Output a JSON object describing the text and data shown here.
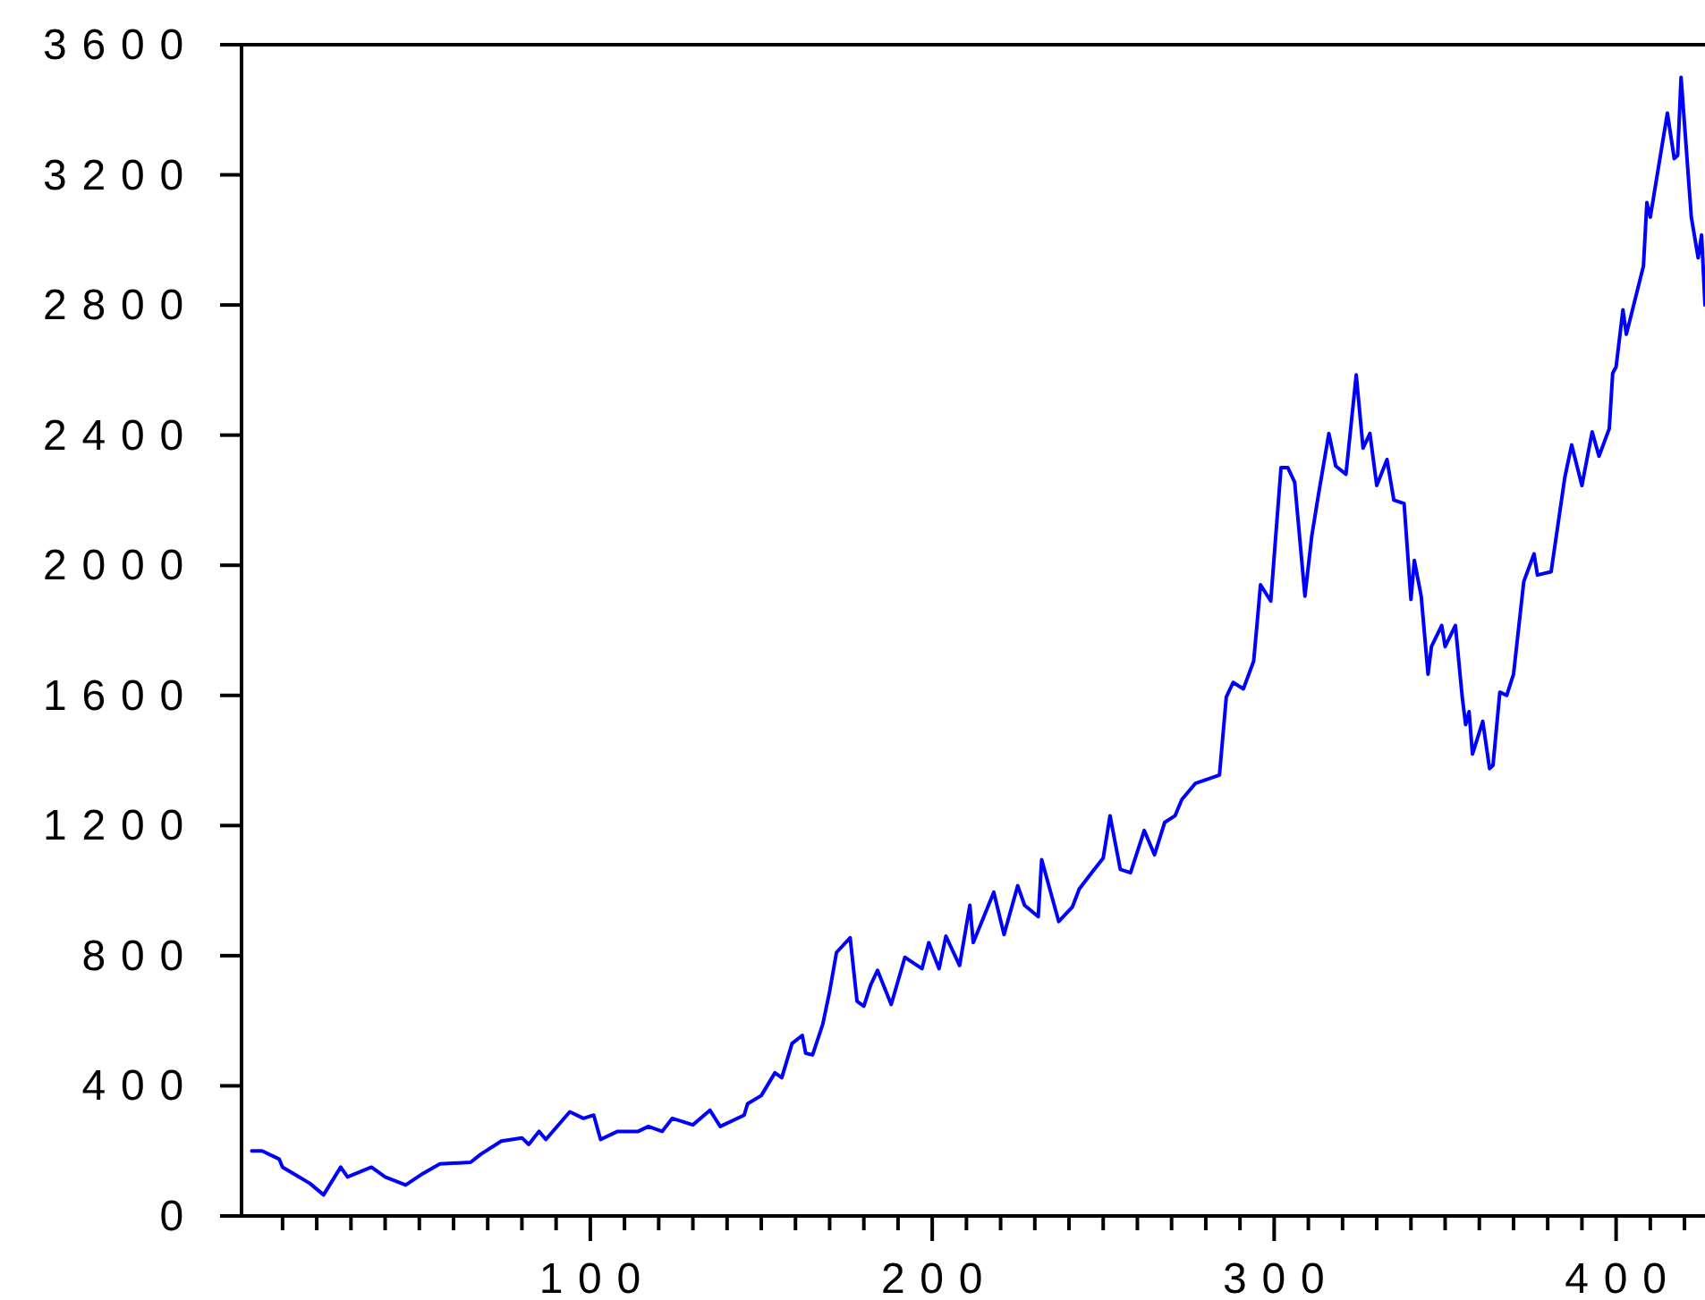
{
  "chart_data": {
    "type": "line",
    "xlim": [
      -2,
      426
    ],
    "ylim": [
      0,
      3600
    ],
    "xticks": [
      {
        "value": 10,
        "label": null
      },
      {
        "value": 20,
        "label": null
      },
      {
        "value": 30,
        "label": null
      },
      {
        "value": 40,
        "label": null
      },
      {
        "value": 50,
        "label": null
      },
      {
        "value": 60,
        "label": null
      },
      {
        "value": 70,
        "label": null
      },
      {
        "value": 80,
        "label": null
      },
      {
        "value": 90,
        "label": null
      },
      100,
      {
        "value": 110,
        "label": null
      },
      {
        "value": 120,
        "label": null
      },
      {
        "value": 130,
        "label": null
      },
      {
        "value": 140,
        "label": null
      },
      {
        "value": 150,
        "label": null
      },
      {
        "value": 160,
        "label": null
      },
      {
        "value": 170,
        "label": null
      },
      {
        "value": 180,
        "label": null
      },
      {
        "value": 190,
        "label": null
      },
      200,
      {
        "value": 210,
        "label": null
      },
      {
        "value": 220,
        "label": null
      },
      {
        "value": 230,
        "label": null
      },
      {
        "value": 240,
        "label": null
      },
      {
        "value": 250,
        "label": null
      },
      {
        "value": 260,
        "label": null
      },
      {
        "value": 270,
        "label": null
      },
      {
        "value": 280,
        "label": null
      },
      {
        "value": 290,
        "label": null
      },
      300,
      {
        "value": 310,
        "label": null
      },
      {
        "value": 320,
        "label": null
      },
      {
        "value": 330,
        "label": null
      },
      {
        "value": 340,
        "label": null
      },
      {
        "value": 350,
        "label": null
      },
      {
        "value": 360,
        "label": null
      },
      {
        "value": 370,
        "label": null
      },
      {
        "value": 380,
        "label": null
      },
      {
        "value": 390,
        "label": null
      },
      400,
      {
        "value": 410,
        "label": null
      },
      {
        "value": 420,
        "label": null
      }
    ],
    "yticks": [
      0,
      400,
      800,
      1200,
      1600,
      2000,
      2400,
      2800,
      3200,
      3600
    ],
    "grid": false,
    "marker": "none",
    "line_style": "solid",
    "series": [
      {
        "color": "#0000ff",
        "x": [
          1,
          4,
          9,
          10,
          14,
          18,
          22,
          27,
          29,
          36,
          40,
          46,
          51,
          56,
          65,
          68,
          74,
          80,
          82,
          85,
          87,
          94,
          98,
          101,
          103,
          108,
          114,
          117,
          121,
          124,
          130,
          135,
          138,
          145,
          146,
          150,
          152,
          154,
          156,
          159,
          162,
          163,
          165,
          168,
          170,
          172,
          176,
          178,
          180,
          182,
          184,
          188,
          192,
          197,
          199,
          202,
          204,
          208,
          211,
          212,
          218,
          221,
          225,
          227,
          231,
          232,
          237,
          241,
          243,
          247,
          250,
          252,
          255,
          258,
          262,
          265,
          268,
          271,
          273,
          277,
          284,
          286,
          288,
          291,
          294,
          295,
          296,
          299,
          302,
          304,
          306,
          309,
          311,
          313,
          316,
          318,
          321,
          324,
          326,
          328,
          330,
          333,
          335,
          338,
          340,
          341,
          343,
          345,
          346,
          349,
          350,
          353,
          355,
          356,
          357,
          358,
          361,
          363,
          364,
          366,
          368,
          370,
          373,
          376,
          377,
          381,
          385,
          387,
          390,
          393,
          395,
          398,
          399,
          400,
          402,
          403,
          408,
          409,
          410,
          415,
          417,
          418,
          419,
          422,
          424,
          425,
          426
        ],
        "values": [
          200,
          200,
          175,
          150,
          125,
          100,
          65,
          150,
          120,
          150,
          120,
          95,
          130,
          160,
          165,
          190,
          230,
          240,
          220,
          260,
          235,
          320,
          300,
          310,
          235,
          260,
          260,
          275,
          260,
          300,
          280,
          325,
          275,
          310,
          345,
          370,
          405,
          440,
          425,
          530,
          555,
          500,
          495,
          590,
          690,
          810,
          855,
          660,
          645,
          710,
          755,
          650,
          795,
          760,
          840,
          760,
          860,
          770,
          955,
          840,
          995,
          865,
          1015,
          955,
          920,
          1095,
          905,
          950,
          1005,
          1060,
          1100,
          1230,
          1065,
          1055,
          1185,
          1110,
          1210,
          1230,
          1280,
          1330,
          1355,
          1595,
          1640,
          1620,
          1705,
          1820,
          1940,
          1890,
          2300,
          2300,
          2255,
          1905,
          2090,
          2220,
          2405,
          2305,
          2280,
          2585,
          2360,
          2405,
          2245,
          2325,
          2200,
          2190,
          1895,
          2015,
          1905,
          1665,
          1750,
          1815,
          1750,
          1815,
          1595,
          1510,
          1550,
          1420,
          1520,
          1375,
          1385,
          1610,
          1600,
          1665,
          1950,
          2035,
          1970,
          1980,
          2270,
          2370,
          2245,
          2410,
          2335,
          2420,
          2590,
          2610,
          2785,
          2710,
          2920,
          3115,
          3070,
          3390,
          3250,
          3260,
          3500,
          3070,
          2945,
          3015,
          2800
        ]
      }
    ]
  }
}
